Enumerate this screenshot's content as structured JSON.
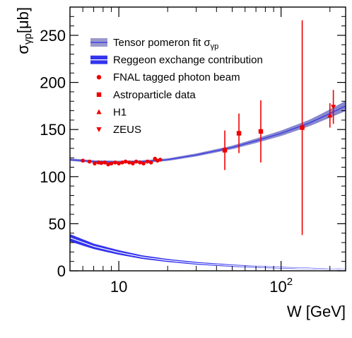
{
  "chart_data": {
    "type": "scatter",
    "title": "",
    "xlabel": "W [GeV]",
    "ylabel_main": "σ",
    "ylabel_sub": "γp",
    "ylabel_unit": "[μb]",
    "x_scale": "log",
    "xlim": [
      5,
      250
    ],
    "ylim": [
      0,
      280
    ],
    "x_ticks": [
      {
        "value": 10,
        "label": "10"
      },
      {
        "value": 100,
        "label": "10",
        "sup": "2"
      }
    ],
    "y_ticks": [
      0,
      50,
      100,
      150,
      200,
      250
    ],
    "grid": false,
    "legend_position": "top-left",
    "legend": [
      {
        "label": "Tensor pomeron fit σ",
        "sub": "γp",
        "marker": "band",
        "color": "#9999cc"
      },
      {
        "label": "Reggeon exchange contribution",
        "marker": "band",
        "color": "#3333ee"
      },
      {
        "label": "FNAL tagged photon beam",
        "marker": "circle",
        "color": "#ee0000"
      },
      {
        "label": "Astroparticle data",
        "marker": "square",
        "color": "#ee0000"
      },
      {
        "label": "H1",
        "marker": "triangle-up",
        "color": "#ee0000"
      },
      {
        "label": "ZEUS",
        "marker": "triangle-down",
        "color": "#ee0000"
      }
    ],
    "series": [
      {
        "name": "Tensor pomeron fit σγp",
        "kind": "band",
        "color": "#8888cc",
        "line_color": "#3333ee",
        "x": [
          5,
          7,
          10,
          14,
          20,
          30,
          50,
          70,
          100,
          150,
          200,
          250
        ],
        "y": [
          118,
          116,
          115.5,
          116,
          118,
          123,
          131,
          138,
          146,
          157,
          167,
          175
        ],
        "y_err": [
          1,
          1,
          1,
          1,
          1,
          1.2,
          1.5,
          2,
          2.5,
          3,
          4,
          5
        ]
      },
      {
        "name": "Reggeon exchange contribution",
        "kind": "band",
        "color": "#3333ee",
        "x": [
          5,
          7,
          10,
          14,
          20,
          30,
          50,
          70,
          100,
          150,
          200,
          250
        ],
        "y": [
          35,
          26,
          19.5,
          14.5,
          11,
          8,
          5.5,
          4.3,
          3.3,
          2.5,
          2,
          1.7
        ],
        "y_err": [
          3.5,
          2.5,
          2,
          1.5,
          1.2,
          1,
          0.8,
          0.6,
          0.5,
          0.4,
          0.3,
          0.3
        ]
      },
      {
        "name": "FNAL tagged photon beam",
        "kind": "points",
        "marker": "circle",
        "color": "#ee0000",
        "x": [
          6.0,
          6.6,
          7.1,
          7.5,
          7.8,
          8.2,
          8.6,
          9.0,
          9.5,
          10.0,
          10.5,
          11.0,
          11.6,
          12.2,
          12.8,
          13.5,
          14.2,
          15.0,
          15.8,
          16.7,
          17.3,
          18.0
        ],
        "y": [
          117,
          116,
          114,
          115,
          114.5,
          115,
          113,
          114,
          115,
          114,
          115,
          116,
          115,
          114,
          116,
          115,
          114,
          116,
          115,
          119,
          117,
          118
        ],
        "y_err": [
          1,
          1,
          1,
          1,
          1,
          1,
          1,
          1,
          1,
          1,
          1,
          1,
          1,
          1,
          1,
          1,
          1,
          1,
          1,
          1,
          1,
          1
        ]
      },
      {
        "name": "Astroparticle data",
        "kind": "points",
        "marker": "square",
        "color": "#ee0000",
        "x": [
          45,
          55,
          75,
          135
        ],
        "y": [
          128,
          146,
          148,
          152
        ],
        "y_err": [
          21,
          21,
          33,
          114
        ]
      },
      {
        "name": "H1",
        "kind": "points",
        "marker": "triangle-up",
        "color": "#ee0000",
        "x": [
          200
        ],
        "y": [
          165
        ],
        "y_err": [
          13
        ]
      },
      {
        "name": "ZEUS",
        "kind": "points",
        "marker": "triangle-down",
        "color": "#ee0000",
        "x": [
          210
        ],
        "y": [
          174
        ],
        "y_err": [
          18
        ]
      }
    ]
  }
}
